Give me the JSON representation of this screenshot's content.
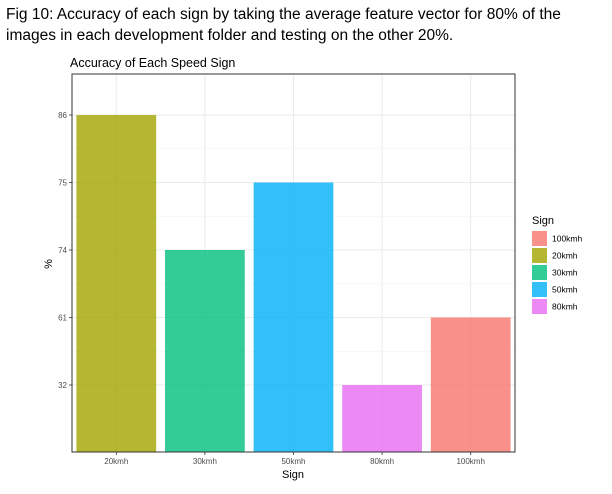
{
  "caption": "Fig 10: Accuracy of each sign by taking the average feature vector for 80% of the images in each development folder and testing on the other 20%.",
  "chart_data": {
    "type": "bar",
    "title": "Accuracy of Each Speed Sign",
    "xlabel": "Sign",
    "ylabel": "%",
    "categories": [
      "20kmh",
      "30kmh",
      "50kmh",
      "80kmh",
      "100kmh"
    ],
    "values": [
      86,
      74,
      75,
      32,
      61
    ],
    "y_tick_labels": [
      "32",
      "61",
      "74",
      "75",
      "86"
    ],
    "y_scale": "discrete (ticks sorted as labels; bar heights by tick order)",
    "legend": {
      "title": "Sign",
      "position": "right",
      "entries": [
        {
          "label": "100kmh",
          "color": "#F8766D"
        },
        {
          "label": "20kmh",
          "color": "#A3A500"
        },
        {
          "label": "30kmh",
          "color": "#00BF7D"
        },
        {
          "label": "50kmh",
          "color": "#00B0F6"
        },
        {
          "label": "80kmh",
          "color": "#E76BF3"
        }
      ]
    },
    "bar_colors": {
      "20kmh": "#A3A500",
      "30kmh": "#00BF7D",
      "50kmh": "#00B0F6",
      "80kmh": "#E76BF3",
      "100kmh": "#F8766D"
    },
    "bar_opacity": 0.8,
    "grid": true,
    "theme": "bw"
  }
}
